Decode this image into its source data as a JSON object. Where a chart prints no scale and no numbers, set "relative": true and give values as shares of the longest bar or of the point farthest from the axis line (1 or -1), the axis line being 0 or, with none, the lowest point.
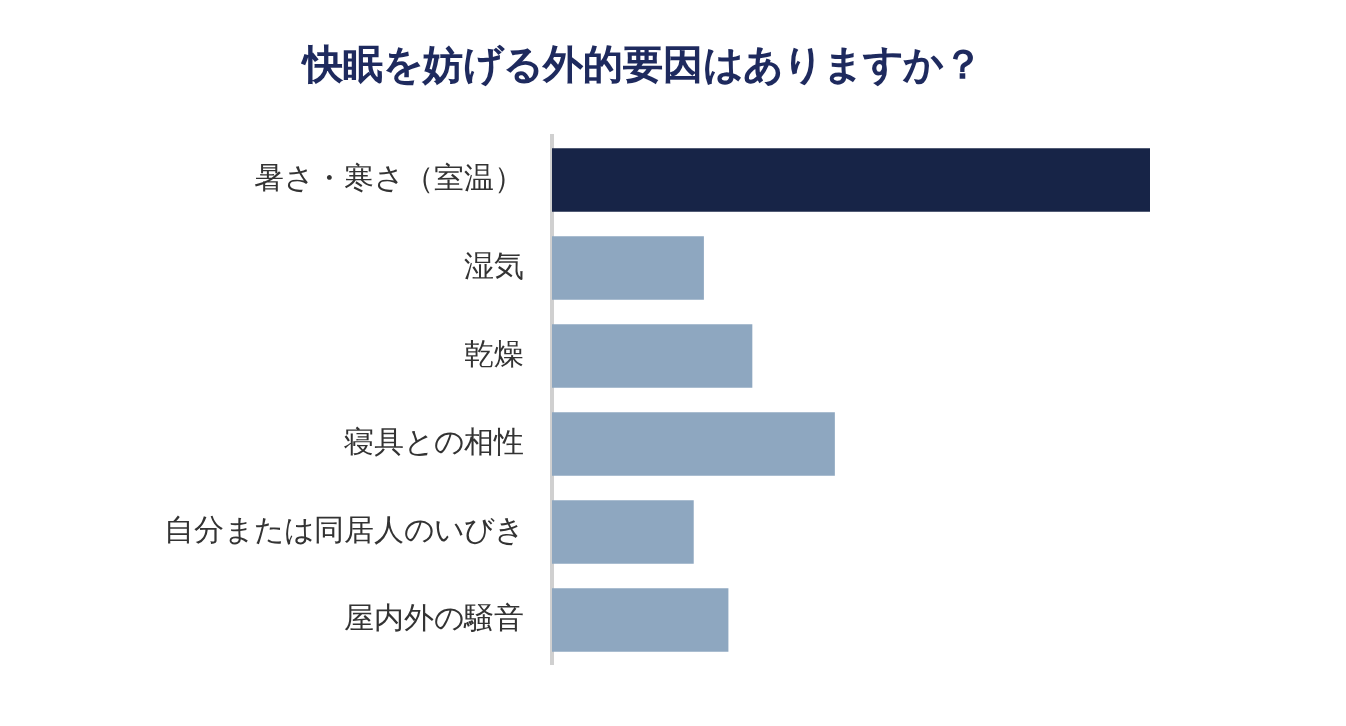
{
  "chart_data": {
    "type": "bar",
    "orientation": "horizontal",
    "relative": true,
    "title": "快眠を妨げる外的要因はありますか？",
    "categories": [
      "暑さ・寒さ（室温）",
      "湿気",
      "乾燥",
      "寝具との相性",
      "自分または同居人のいびき",
      "屋内外の騒音"
    ],
    "values": [
      1,
      0.254,
      0.335,
      0.473,
      0.237,
      0.295
    ],
    "colors": [
      "#172447",
      "#8ea7c0",
      "#8ea7c0",
      "#8ea7c0",
      "#8ea7c0",
      "#8ea7c0"
    ],
    "grid": false,
    "legend": false
  }
}
